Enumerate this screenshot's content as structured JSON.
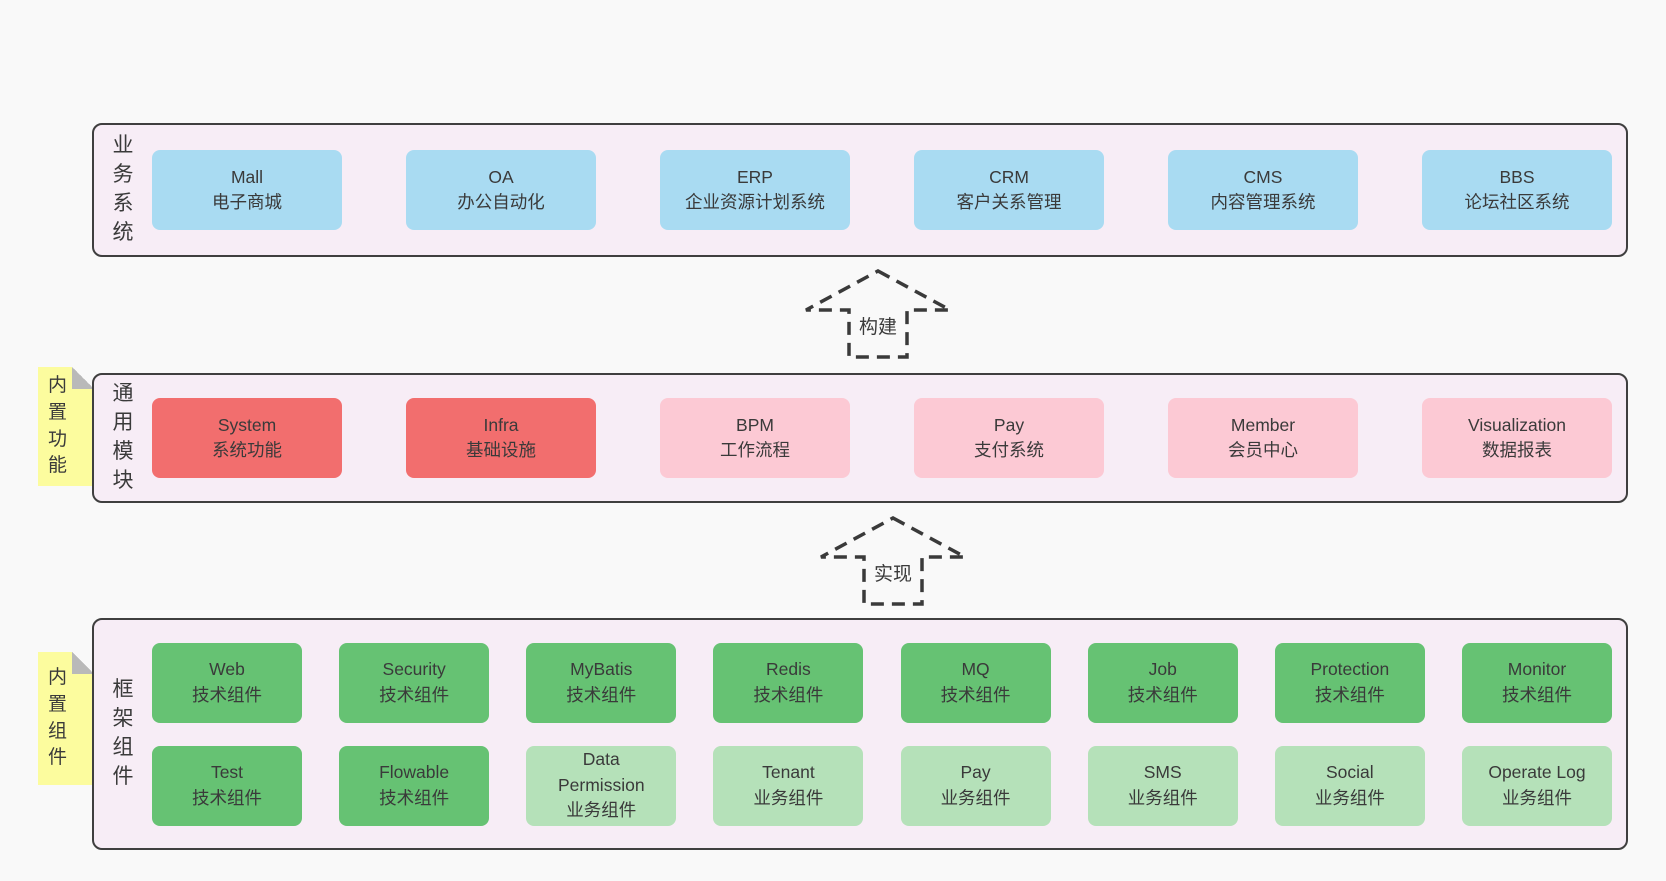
{
  "colors": {
    "page_bg": "#f9f9f9",
    "layer_bg": "#f7edf6",
    "layer_border": "#3f3f3f",
    "blue": "#a9dbf2",
    "red": "#f26e6e",
    "pink": "#fcc9d4",
    "green": "#66c273",
    "light_green": "#b5e1b9",
    "sticky_yellow": "#fcfc9e",
    "sticky_fold": "#b9b9b9",
    "text": "#3a3a3a"
  },
  "arrows": [
    {
      "label": "构建"
    },
    {
      "label": "实现"
    }
  ],
  "layers": [
    {
      "label": "业务系统",
      "sticky": null,
      "rows": [
        [
          {
            "name": "Mall",
            "desc": "电子商城",
            "type": "blue"
          },
          {
            "name": "OA",
            "desc": "办公自动化",
            "type": "blue"
          },
          {
            "name": "ERP",
            "desc": "企业资源计划系统",
            "type": "blue"
          },
          {
            "name": "CRM",
            "desc": "客户关系管理",
            "type": "blue"
          },
          {
            "name": "CMS",
            "desc": "内容管理系统",
            "type": "blue"
          },
          {
            "name": "BBS",
            "desc": "论坛社区系统",
            "type": "blue"
          }
        ]
      ]
    },
    {
      "label": "通用模块",
      "sticky": "内置功能",
      "rows": [
        [
          {
            "name": "System",
            "desc": "系统功能",
            "type": "red"
          },
          {
            "name": "Infra",
            "desc": "基础设施",
            "type": "red"
          },
          {
            "name": "BPM",
            "desc": "工作流程",
            "type": "pink"
          },
          {
            "name": "Pay",
            "desc": "支付系统",
            "type": "pink"
          },
          {
            "name": "Member",
            "desc": "会员中心",
            "type": "pink"
          },
          {
            "name": "Visualization",
            "desc": "数据报表",
            "type": "pink"
          }
        ]
      ]
    },
    {
      "label": "框架组件",
      "sticky": "内置组件",
      "rows": [
        [
          {
            "name": "Web",
            "desc": "技术组件",
            "type": "green"
          },
          {
            "name": "Security",
            "desc": "技术组件",
            "type": "green"
          },
          {
            "name": "MyBatis",
            "desc": "技术组件",
            "type": "green"
          },
          {
            "name": "Redis",
            "desc": "技术组件",
            "type": "green"
          },
          {
            "name": "MQ",
            "desc": "技术组件",
            "type": "green"
          },
          {
            "name": "Job",
            "desc": "技术组件",
            "type": "green"
          },
          {
            "name": "Protection",
            "desc": "技术组件",
            "type": "green"
          },
          {
            "name": "Monitor",
            "desc": "技术组件",
            "type": "green"
          }
        ],
        [
          {
            "name": "Test",
            "desc": "技术组件",
            "type": "green"
          },
          {
            "name": "Flowable",
            "desc": "技术组件",
            "type": "green"
          },
          {
            "name": "Data Permission",
            "desc": "业务组件",
            "type": "light_green"
          },
          {
            "name": "Tenant",
            "desc": "业务组件",
            "type": "light_green"
          },
          {
            "name": "Pay",
            "desc": "业务组件",
            "type": "light_green"
          },
          {
            "name": "SMS",
            "desc": "业务组件",
            "type": "light_green"
          },
          {
            "name": "Social",
            "desc": "业务组件",
            "type": "light_green"
          },
          {
            "name": "Operate Log",
            "desc": "业务组件",
            "type": "light_green"
          }
        ]
      ]
    }
  ]
}
